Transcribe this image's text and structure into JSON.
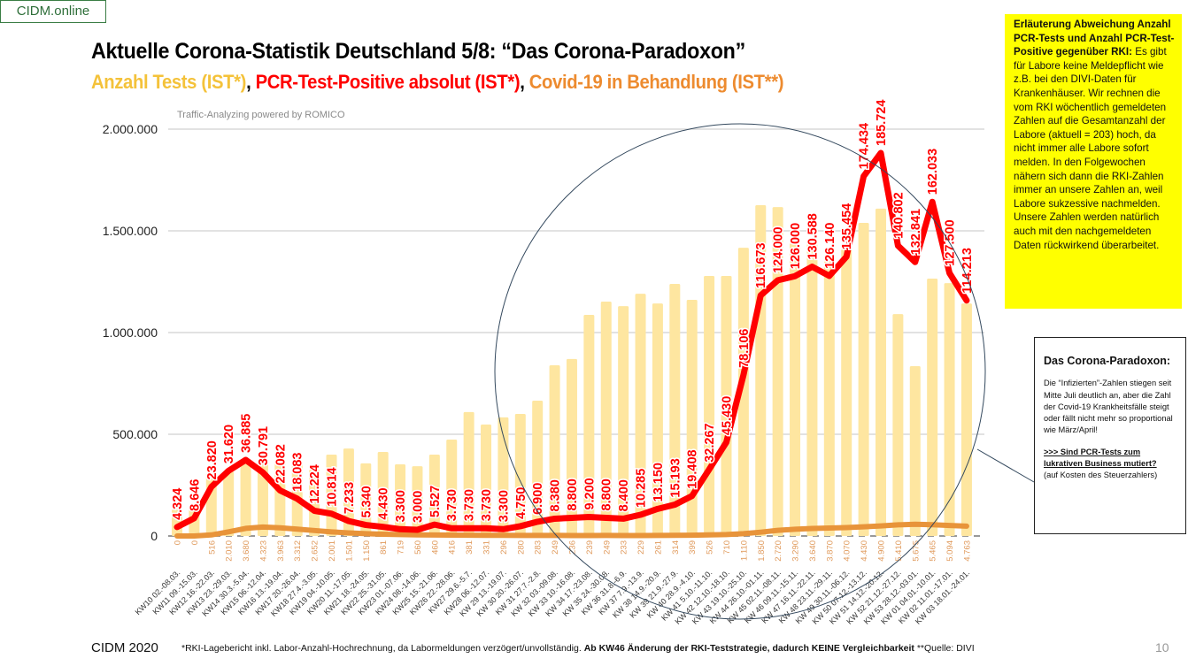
{
  "brand": "CIDM.online",
  "title": "Aktuelle Corona-Statistik Deutschland 5/8: “Das Corona-Paradoxon”",
  "subtitle": {
    "part1": "Anzahl Tests (IST*)",
    "sep1": ", ",
    "part2": "PCR-Test-Positive absolut (IST*)",
    "sep2": ", ",
    "part3": "Covid-19 in Behandlung (IST**)"
  },
  "watermark": "Traffic-Analyzing powered by ROMICO",
  "colors": {
    "tests": "#fee6a0",
    "positive": "#ff0000",
    "treatment": "#e8943a",
    "subtitle_tests": "#f4c23a",
    "subtitle_treatment": "#ed8b2f",
    "note_box": "#ffff00"
  },
  "chart_data": {
    "type": "bar",
    "title": "",
    "xlabel": "",
    "ylabel": "",
    "ylim": [
      0,
      2000000
    ],
    "y2lim": [
      0,
      197300
    ],
    "yticks": [
      "0",
      "500.000",
      "1.000.000",
      "1.500.000",
      "2.000.000"
    ],
    "ytick_values": [
      0,
      500000,
      1000000,
      1500000,
      2000000
    ],
    "grid": true,
    "categories": [
      "KW10 02.-08.03.",
      "KW11 09.-15.03.",
      "KW12 16.-22.03.",
      "KW13 23.-29.03.",
      "KW14 30.3.-5.04.",
      "KW15 06.-12.04.",
      "KW16 13.-19.04.",
      "KW17 20.-26.04.",
      "KW18 27.4.-3.05.",
      "KW19 04.-10.05.",
      "KW20 11.-17.05.",
      "KW21 18.-24.05.",
      "KW22 25.-31.05.",
      "KW23 01.-07.06.",
      "KW24 08.-14.06.",
      "KW25 15.-21.06.",
      "KW26 22.-28.06.",
      "KW27 29.6.-5.7.",
      "KW28 06.-12.07.",
      "KW 29 13.-19.07.",
      "KW 30 20.-26.07.",
      "KW 31 27.7.-2.8.",
      "KW 32 03.-09.08.",
      "KW 33 10.-16.08.",
      "KW 34 17.-23.08.",
      "KW 35 24.-30.08.",
      "KW 36 31.8.-6.9.",
      "KW 37 7.9.-13.9.",
      "KW 38 14.9.-20.9.",
      "KW 39 21.9.-27.9.",
      "KW 40 28.9.-4.10.",
      "KW 41 5.10.-11.10.",
      "KW 42 12.10.-18.10.",
      "KW 43 19.10.-25.10.",
      "KW 44 26.10.-01.11.",
      "KW 45 02.11.-08.11.",
      "KW 46 09.11.-15.11.",
      "KW 47 16.11.-22.11.",
      "KW 48 23.11.-29.11.",
      "KW 49 30.11.-06.12.",
      "KW 50 07.12.-13.12.",
      "KW 51 14.12.-20.12.",
      "KW 52 21.12.-27.12.",
      "KW 53 28.12.-03.01.",
      "KW 01 04.01.-10.01.",
      "KW 02 11.01.-17.01.",
      "KW 03 18.01.-24.01."
    ],
    "series": [
      {
        "key": "tests",
        "kind": "bar",
        "axis": "primary",
        "values": [
          130000,
          150000,
          308000,
          317000,
          374000,
          365000,
          361000,
          361000,
          326000,
          400000,
          430000,
          357000,
          413000,
          352000,
          343000,
          400000,
          474000,
          609000,
          548000,
          583000,
          600000,
          665000,
          839000,
          870000,
          1087000,
          1152000,
          1130000,
          1191000,
          1143000,
          1239000,
          1161000,
          1278000,
          1278000,
          1417000,
          1626000,
          1617000,
          1439000,
          1435000,
          1350000,
          1409000,
          1539000,
          1609000,
          1091000,
          835000,
          1265000,
          1243000,
          1143000
        ]
      },
      {
        "key": "positive",
        "kind": "line",
        "axis": "secondary",
        "labels": true,
        "values": [
          4324,
          8646,
          23820,
          31620,
          36885,
          30791,
          22082,
          18083,
          12224,
          10814,
          7233,
          5340,
          4430,
          3300,
          3000,
          5527,
          3730,
          3730,
          3730,
          3300,
          4750,
          6900,
          8380,
          8800,
          9200,
          8800,
          8400,
          10285,
          13150,
          15193,
          19408,
          32267,
          45430,
          78106,
          116673,
          124000,
          126000,
          130588,
          126140,
          135454,
          174434,
          185724,
          140802,
          132841,
          162033,
          127500,
          114213
        ]
      },
      {
        "key": "treatment",
        "kind": "line",
        "axis": "secondary",
        "labels": true,
        "values": [
          0,
          0,
          516,
          2010,
          3680,
          4323,
          3963,
          3312,
          2652,
          2001,
          1501,
          1150,
          861,
          719,
          560,
          460,
          416,
          381,
          331,
          296,
          280,
          283,
          249,
          236,
          239,
          249,
          233,
          229,
          261,
          314,
          399,
          526,
          710,
          1110,
          1850,
          2720,
          3290,
          3640,
          3870,
          4070,
          4430,
          4900,
          5410,
          5675,
          5465,
          5094,
          4763
        ]
      }
    ]
  },
  "note_box": {
    "heading": "Erläuterung Abweichung Anzahl PCR-Tests und Anzahl PCR-Test-Positive gegenüber RKI:",
    "body": "Es gibt für Labore keine Meldepflicht wie z.B. bei den DIVI-Daten für Krankenhäuser. Wir rechnen die vom RKI wöchentlich gemeldeten Zahlen auf die Gesamtanzahl der Labore (aktuell = 203) hoch, da nicht immer alle Labore sofort melden. In den Folgewochen nähern sich dann die RKI-Zahlen immer an unsere Zahlen an, weil Labore sukzessive nachmelden.",
    "body2": "Unsere Zahlen werden natürlich auch mit den nachgemeldeten Daten rückwirkend überarbeitet."
  },
  "paradox_box": {
    "heading": "Das Corona-Paradoxon:",
    "body": "Die “Infizierten”-Zahlen stiegen seit Mitte Juli deutlich an, aber die Zahl der Covid-19 Krankheitsfälle steigt oder fällt nicht mehr so proportional wie März/April!",
    "question": ">>> Sind PCR-Tests zum lukrativen Business mutiert?",
    "aside": "(auf Kosten des Steuerzahlers)"
  },
  "footer": {
    "brand": "CIDM 2020",
    "note_regular": "*RKI-Lagebericht inkl. Labor-Anzahl-Hochrechnung, da Labormeldungen verzögert/unvollständig. ",
    "note_bold": "Ab KW46 Änderung der RKI-Teststrategie, dadurch KEINE Vergleichbarkeit",
    "note_source": " **Quelle: DIVI",
    "page": "10"
  }
}
